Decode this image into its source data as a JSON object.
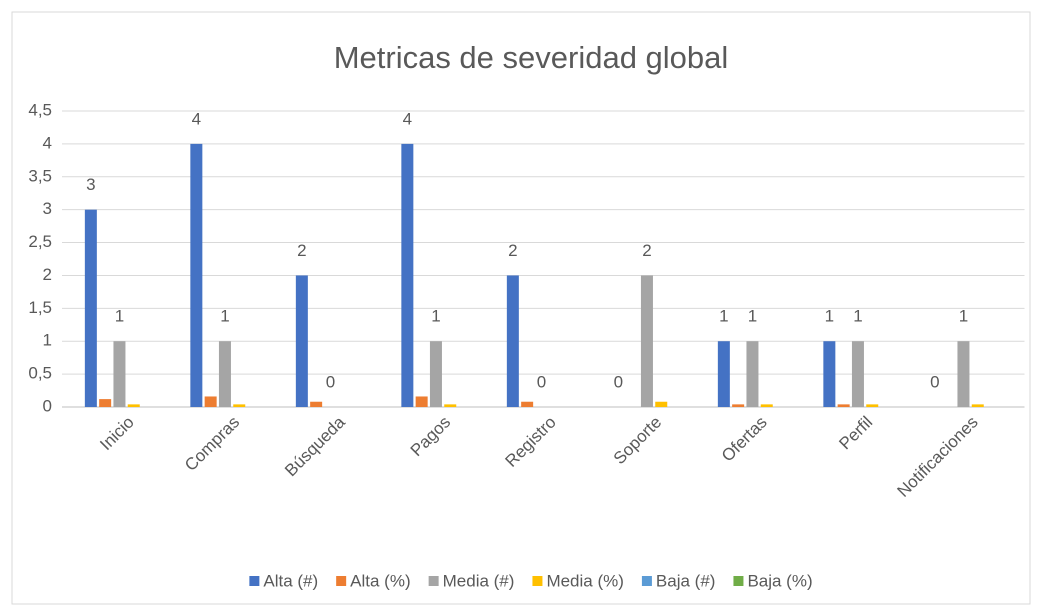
{
  "chart_data": {
    "type": "bar",
    "title": "Metricas de severidad global",
    "categories": [
      "Inicio",
      "Compras",
      "Búsqueda",
      "Pagos",
      "Registro",
      "Soporte",
      "Ofertas",
      "Perfil",
      "Notificaciones"
    ],
    "series": [
      {
        "name": "Alta (#)",
        "color": "#4472c4",
        "values": [
          3,
          4,
          2,
          4,
          2,
          0,
          1,
          1,
          0
        ],
        "data_labels": true
      },
      {
        "name": "Alta (%)",
        "color": "#ed7d31",
        "values": [
          0.12,
          0.16,
          0.08,
          0.16,
          0.08,
          0,
          0.04,
          0.04,
          0
        ],
        "data_labels": false
      },
      {
        "name": "Media (#)",
        "color": "#a5a5a5",
        "values": [
          1,
          1,
          0,
          1,
          0,
          2,
          1,
          1,
          1
        ],
        "data_labels": true
      },
      {
        "name": "Media (%)",
        "color": "#ffc000",
        "values": [
          0.04,
          0.04,
          0,
          0.04,
          0,
          0.08,
          0.04,
          0.04,
          0.04
        ],
        "data_labels": false
      },
      {
        "name": "Baja (#)",
        "color": "#5b9bd5",
        "values": [
          0,
          0,
          0,
          0,
          0,
          0,
          0,
          0,
          0
        ],
        "data_labels": false
      },
      {
        "name": "Baja (%)",
        "color": "#70ad47",
        "values": [
          0,
          0,
          0,
          0,
          0,
          0,
          0,
          0,
          0
        ],
        "data_labels": false
      }
    ],
    "ylim": [
      0,
      4.5
    ],
    "yticks": [
      0,
      {
        "value": 0.5,
        "label": "0,5"
      },
      1,
      {
        "value": 1.5,
        "label": "1,5"
      },
      2,
      {
        "value": 2.5,
        "label": "2,5"
      },
      3,
      {
        "value": 3.5,
        "label": "3,5"
      },
      4,
      {
        "value": 4.5,
        "label": "4,5"
      }
    ],
    "grid": true,
    "legend": "bottom"
  }
}
